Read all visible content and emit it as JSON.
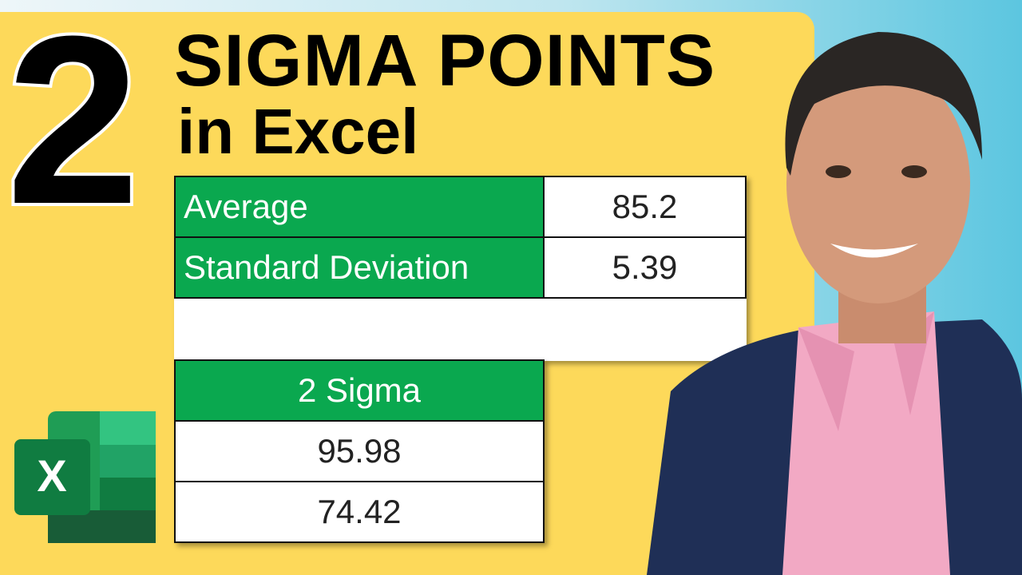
{
  "header": {
    "number": "2",
    "title": "SIGMA POINTS",
    "subtitle": "in Excel"
  },
  "summary_table": {
    "rows": [
      [
        "Average",
        "85.2"
      ],
      [
        "Standard Deviation",
        "5.39"
      ]
    ]
  },
  "sigma_table": {
    "header": "2 Sigma",
    "rows": [
      "95.98",
      "74.42"
    ]
  },
  "icon": {
    "label": "X"
  }
}
